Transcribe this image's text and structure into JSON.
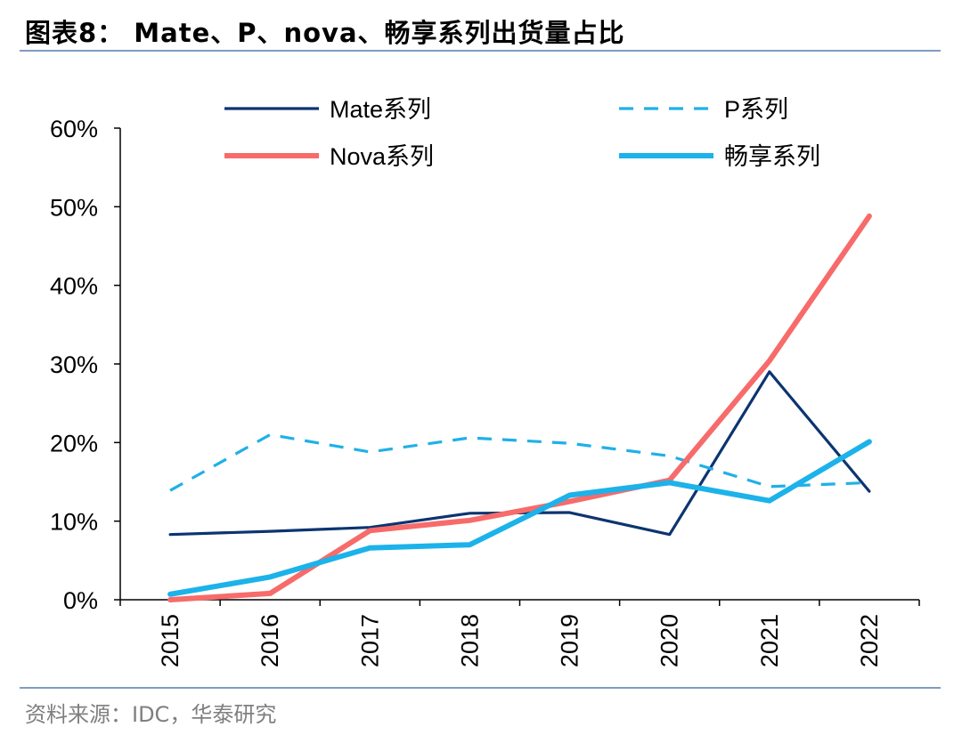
{
  "header": {
    "title": "图表8： Mate、P、nova、畅享系列出货量占比"
  },
  "footer": {
    "source": "资料来源：IDC，华泰研究"
  },
  "chart_data": {
    "type": "line",
    "title": "",
    "xlabel": "",
    "ylabel": "",
    "x": [
      "2015",
      "2016",
      "2017",
      "2018",
      "2019",
      "2020",
      "2021",
      "2022"
    ],
    "y_ticks": [
      "0%",
      "10%",
      "20%",
      "30%",
      "40%",
      "50%",
      "60%"
    ],
    "ylim": [
      0,
      0.6
    ],
    "legend": {
      "placement": "top",
      "columns": 2
    },
    "grid": false,
    "series": [
      {
        "name": "Mate系列",
        "color": "#0c3470",
        "dash": "solid",
        "width": "thin",
        "values": [
          0.083,
          0.087,
          0.092,
          0.11,
          0.111,
          0.083,
          0.29,
          0.138
        ]
      },
      {
        "name": "P系列",
        "color": "#1fb0e8",
        "dash": "dashed",
        "width": "thin",
        "values": [
          0.139,
          0.21,
          0.188,
          0.206,
          0.199,
          0.183,
          0.144,
          0.149
        ]
      },
      {
        "name": "Nova系列",
        "color": "#f76b6b",
        "dash": "solid",
        "width": "thick",
        "values": [
          0.0,
          0.008,
          0.088,
          0.101,
          0.125,
          0.152,
          0.304,
          0.488
        ]
      },
      {
        "name": "畅享系列",
        "color": "#1cb2ea",
        "dash": "solid",
        "width": "thick",
        "values": [
          0.007,
          0.029,
          0.066,
          0.07,
          0.133,
          0.149,
          0.126,
          0.201
        ]
      }
    ]
  }
}
